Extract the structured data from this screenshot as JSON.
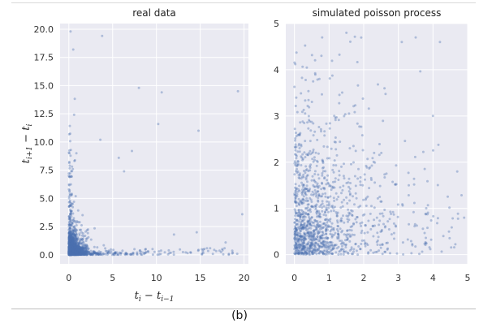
{
  "figure": {
    "caption": "(b)"
  },
  "chart_data": [
    {
      "type": "scatter",
      "title": "real data",
      "xlabel_html": "t<tspan font-style='italic'>i</tspan>",
      "xlabel": "t_i − t_{i−1}",
      "ylabel": "t_{i+1} − t_i",
      "xlim": [
        -1,
        20.5
      ],
      "ylim": [
        -0.8,
        20.5
      ],
      "xticks": [
        0,
        5,
        10,
        15,
        20
      ],
      "yticks": [
        0.0,
        2.5,
        5.0,
        7.5,
        10.0,
        12.5,
        15.0,
        17.5,
        20.0
      ],
      "ytick_labels": [
        "0.0",
        "2.5",
        "5.0",
        "7.5",
        "10.0",
        "12.5",
        "15.0",
        "17.5",
        "20.0"
      ],
      "xtick_labels": [
        "0",
        "5",
        "10",
        "15",
        "20"
      ],
      "grid": true,
      "point_color": "#4c72b0",
      "background": "#eaeaf2",
      "notable_points": [
        {
          "x": 0.2,
          "y": 19.8
        },
        {
          "x": 3.8,
          "y": 19.4
        },
        {
          "x": 0.5,
          "y": 18.2
        },
        {
          "x": 19.3,
          "y": 14.5
        },
        {
          "x": 8.0,
          "y": 14.8
        },
        {
          "x": 10.6,
          "y": 14.4
        },
        {
          "x": 10.2,
          "y": 11.6
        },
        {
          "x": 14.8,
          "y": 11.0
        },
        {
          "x": 3.6,
          "y": 10.2
        },
        {
          "x": 7.2,
          "y": 9.2
        },
        {
          "x": 5.7,
          "y": 8.6
        },
        {
          "x": 6.3,
          "y": 7.4
        },
        {
          "x": 19.8,
          "y": 3.6
        },
        {
          "x": 12.0,
          "y": 1.8
        },
        {
          "x": 14.6,
          "y": 2.0
        },
        {
          "x": 17.9,
          "y": 1.1
        },
        {
          "x": 15.3,
          "y": 0.3
        },
        {
          "x": 18.7,
          "y": 0.2
        }
      ]
    },
    {
      "type": "scatter",
      "title": "simulated poisson process",
      "xlabel": "",
      "ylabel": "",
      "xlim": [
        -0.25,
        5.0
      ],
      "ylim": [
        -0.2,
        5.0
      ],
      "xticks": [
        0,
        1,
        2,
        3,
        4,
        5
      ],
      "yticks": [
        0,
        1,
        2,
        3,
        4,
        5
      ],
      "xtick_labels": [
        "0",
        "1",
        "2",
        "3",
        "4",
        "5"
      ],
      "ytick_labels": [
        "0",
        "1",
        "2",
        "3",
        "4",
        "5"
      ],
      "grid": true,
      "point_color": "#4c72b0",
      "background": "#eaeaf2",
      "notable_points": [
        {
          "x": 0.8,
          "y": 4.7
        },
        {
          "x": 1.5,
          "y": 4.8
        },
        {
          "x": 3.1,
          "y": 4.6
        },
        {
          "x": 3.5,
          "y": 4.7
        },
        {
          "x": 4.2,
          "y": 4.6
        },
        {
          "x": 4.0,
          "y": 3.0
        },
        {
          "x": 4.7,
          "y": 1.8
        },
        {
          "x": 4.9,
          "y": 0.8
        },
        {
          "x": 2.6,
          "y": 3.6
        },
        {
          "x": 2.3,
          "y": 2.2
        },
        {
          "x": 3.3,
          "y": 1.5
        },
        {
          "x": 4.3,
          "y": 0.4
        }
      ]
    }
  ]
}
